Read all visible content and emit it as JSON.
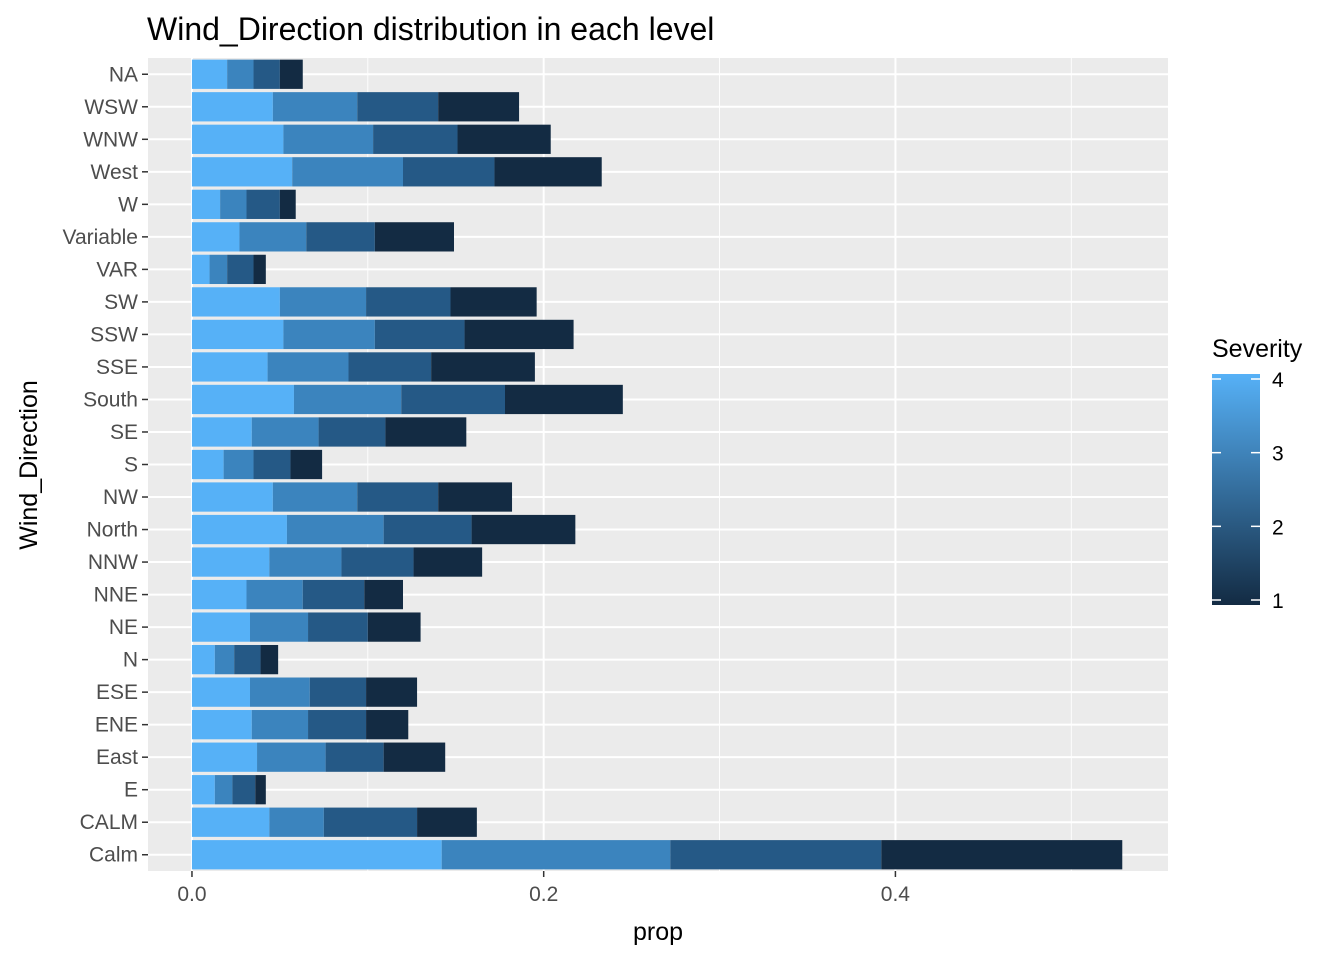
{
  "chart_data": {
    "type": "bar",
    "orientation": "horizontal",
    "stacked": true,
    "title": "Wind_Direction distribution in each level",
    "xlabel": "prop",
    "ylabel": "Wind_Direction",
    "xlim": [
      -0.025,
      0.555
    ],
    "x_ticks": [
      0.0,
      0.2,
      0.4
    ],
    "x_tick_labels": [
      "0.0",
      "0.2",
      "0.4"
    ],
    "grid": true,
    "categories": [
      "Calm",
      "CALM",
      "E",
      "East",
      "ENE",
      "ESE",
      "N",
      "NE",
      "NNE",
      "NNW",
      "North",
      "NW",
      "S",
      "SE",
      "South",
      "SSE",
      "SSW",
      "SW",
      "VAR",
      "Variable",
      "W",
      "West",
      "WNW",
      "WSW",
      "NA"
    ],
    "series": [
      {
        "name": "4",
        "color": "#56b1f7",
        "values": [
          0.142,
          0.044,
          0.013,
          0.037,
          0.034,
          0.033,
          0.013,
          0.033,
          0.031,
          0.044,
          0.054,
          0.046,
          0.018,
          0.034,
          0.058,
          0.043,
          0.052,
          0.05,
          0.01,
          0.027,
          0.016,
          0.057,
          0.052,
          0.046,
          0.02
        ]
      },
      {
        "name": "3",
        "color": "#3b84be",
        "values": [
          0.13,
          0.031,
          0.01,
          0.039,
          0.032,
          0.034,
          0.011,
          0.033,
          0.032,
          0.041,
          0.055,
          0.048,
          0.017,
          0.038,
          0.061,
          0.046,
          0.052,
          0.049,
          0.01,
          0.038,
          0.015,
          0.063,
          0.051,
          0.048,
          0.015
        ]
      },
      {
        "name": "2",
        "color": "#255986",
        "values": [
          0.12,
          0.053,
          0.013,
          0.033,
          0.033,
          0.032,
          0.015,
          0.034,
          0.035,
          0.041,
          0.05,
          0.046,
          0.021,
          0.038,
          0.059,
          0.047,
          0.051,
          0.048,
          0.015,
          0.039,
          0.019,
          0.052,
          0.048,
          0.046,
          0.015
        ]
      },
      {
        "name": "1",
        "color": "#132b43",
        "values": [
          0.137,
          0.034,
          0.006,
          0.035,
          0.024,
          0.029,
          0.01,
          0.03,
          0.022,
          0.039,
          0.059,
          0.042,
          0.018,
          0.046,
          0.067,
          0.059,
          0.062,
          0.049,
          0.007,
          0.045,
          0.009,
          0.061,
          0.053,
          0.046,
          0.013
        ]
      }
    ],
    "legend": {
      "title": "Severity",
      "type": "colorbar",
      "position": "right",
      "range": [
        1,
        4
      ],
      "ticks": [
        "1",
        "2",
        "3",
        "4"
      ],
      "color_low": "#132b43",
      "color_high": "#56b1f7"
    },
    "colors": {
      "panel_background": "#ebebeb",
      "grid_line": "#ffffff",
      "tick_text": "#4d4d4d",
      "tick_mark": "#333333"
    }
  }
}
